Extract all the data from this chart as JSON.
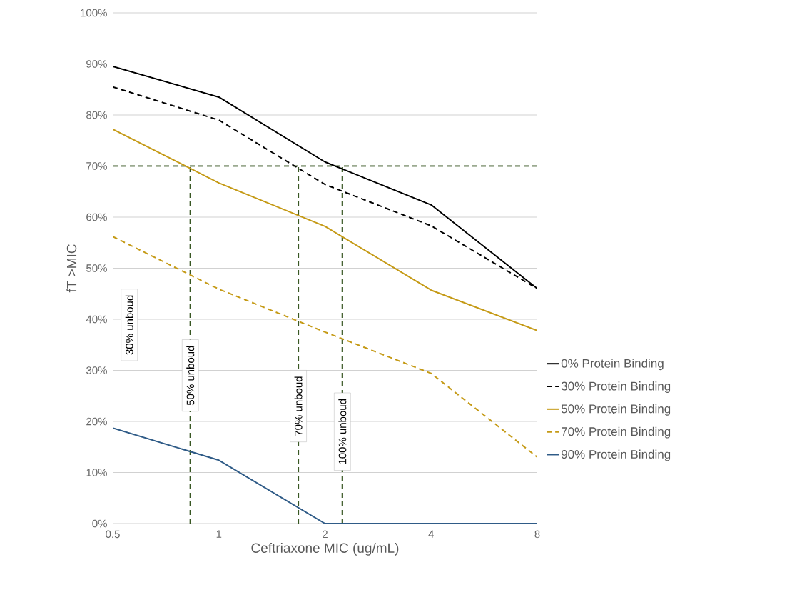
{
  "chart_data": {
    "type": "line",
    "xlabel": "Ceftriaxone MIC (ug/mL)",
    "ylabel": "fT >MIC",
    "log": "x",
    "xlim": [
      0.5,
      8
    ],
    "xticks": [
      0.5,
      1,
      2,
      4,
      8
    ],
    "ylim": [
      0,
      100
    ],
    "yticks": [
      {
        "value": 0,
        "label": "0%"
      },
      {
        "value": 10,
        "label": "10%"
      },
      {
        "value": 20,
        "label": "20%"
      },
      {
        "value": 30,
        "label": "30%"
      },
      {
        "value": 40,
        "label": "40%"
      },
      {
        "value": 50,
        "label": "50%"
      },
      {
        "value": 60,
        "label": "60%"
      },
      {
        "value": 70,
        "label": "70%"
      },
      {
        "value": 80,
        "label": "80%"
      },
      {
        "value": 90,
        "label": "90%"
      },
      {
        "value": 100,
        "label": "100%"
      }
    ],
    "grid": "y",
    "legend": "right",
    "marker": "none",
    "x": [
      0.5,
      1,
      2,
      4,
      8
    ],
    "series": [
      {
        "name": "0% Protein Binding",
        "color": "#000000",
        "line_style": "solid",
        "values": [
          89.5,
          83.5,
          70.8,
          62.4,
          46
        ]
      },
      {
        "name": "30% Protein Binding",
        "color": "#000000",
        "line_style": "dashed",
        "values": [
          85.5,
          79,
          66.4,
          58.3,
          46
        ]
      },
      {
        "name": "50% Protein Binding",
        "color": "#c59a16",
        "line_style": "solid",
        "values": [
          77.2,
          66.7,
          58.2,
          45.7,
          37.8
        ]
      },
      {
        "name": "70% Protein Binding",
        "color": "#c59a16",
        "line_style": "dashed",
        "values": [
          56.2,
          45.9,
          37.5,
          29.4,
          13
        ]
      },
      {
        "name": "90% Protein Binding",
        "color": "#2f5b87",
        "line_style": "solid",
        "values": [
          18.7,
          12.4,
          0,
          0,
          0
        ]
      },
      {
        "x": [
          0.83,
          0.83
        ],
        "color": "#385723",
        "line_style": "dashed",
        "values": [
          0,
          70
        ]
      },
      {
        "x": [
          1.68,
          1.68
        ],
        "color": "#385723",
        "line_style": "dashed",
        "values": [
          0,
          70
        ]
      },
      {
        "x": [
          2.24,
          2.24
        ],
        "color": "#385723",
        "line_style": "dashed",
        "values": [
          0,
          70
        ]
      }
    ],
    "ref_lines": [
      {
        "axis": "y",
        "value": 70,
        "color": "#385723",
        "line_style": "dashed"
      }
    ],
    "annotations": [
      "30% unboud",
      {
        "text": "50% unboud",
        "x": 0.83,
        "y": 29
      },
      {
        "text": "70% unboud",
        "x": 1.68,
        "y": 23
      },
      {
        "text": "100% unboud",
        "x": 2.24,
        "y": 18
      }
    ]
  }
}
